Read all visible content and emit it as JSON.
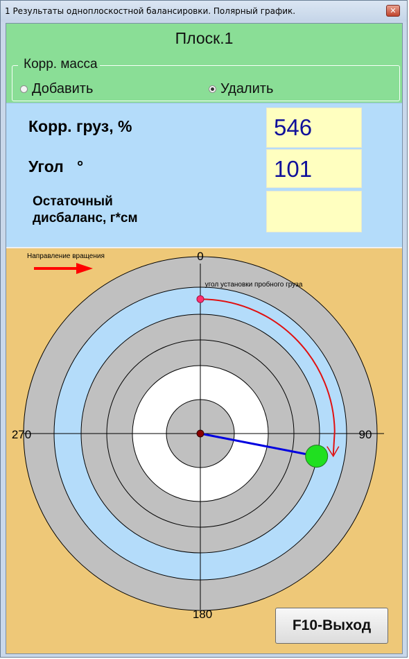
{
  "window": {
    "title": "1 Результаты одноплоскостной балансировки. Полярный график."
  },
  "plane": {
    "title": "Плоск.1"
  },
  "corr_mass": {
    "legend": "Корр. масса",
    "options": [
      {
        "label": "Добавить",
        "checked": false
      },
      {
        "label": "Удалить",
        "checked": true
      }
    ]
  },
  "results": {
    "corr_weight_label": "Корр. груз, %",
    "corr_weight_value": "546",
    "angle_label": "Угол",
    "angle_unit": "°",
    "angle_value": "101",
    "residual_label_line1": "Остаточный",
    "residual_label_line2": "дисбаланс, г*см",
    "residual_value": ""
  },
  "polar": {
    "rotation_label": "Направление вращения",
    "trial_weight_label": "угол установки пробного  груза",
    "angle_labels": {
      "top": "0",
      "right": "90",
      "bottom": "180",
      "left": "270"
    },
    "corr_angle_deg": 101,
    "corr_radius_fraction": 0.67,
    "trial_angle_deg": 0,
    "trial_radius_fraction": 0.76,
    "ring_colors": [
      "#c0c0c0",
      "#b4dcfa",
      "#c0c0c0",
      "#c0c0c0",
      "#ffffff",
      "#c0c0c0"
    ],
    "colors": {
      "rotation_arrow": "#ff0000",
      "angle_arc": "#e01010",
      "corr_vector": "#0000e0",
      "corr_marker": "#20e020",
      "trial_marker": "#ff3070",
      "center_marker": "#8b0000"
    }
  },
  "exit_button": {
    "label": "F10-Выход"
  }
}
